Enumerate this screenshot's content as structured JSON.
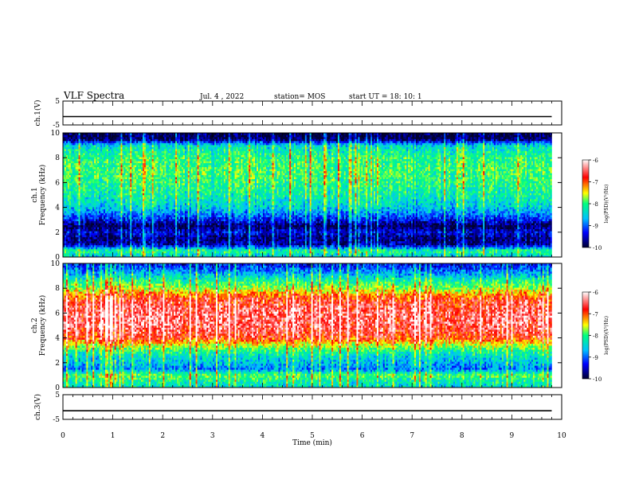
{
  "header": {
    "title": "VLF Spectra",
    "date": "Jul. 4 , 2022",
    "station": "station= MOS",
    "start": "start UT = 18: 10: 1"
  },
  "colors": {
    "spectrogram_scale": [
      "#000030",
      "#0000ff",
      "#00c0ff",
      "#00ff80",
      "#ffff00",
      "#ff0000",
      "#ffffff"
    ],
    "trace": "#000000"
  },
  "chart_data": [
    {
      "type": "line",
      "panel": "ch1-waveform",
      "ylabel": "ch.1(V)",
      "ylim": [
        -5,
        5
      ],
      "yticks": [
        "5",
        "-5"
      ],
      "xlim": [
        0,
        10
      ],
      "series": [
        {
          "x": [
            0,
            9.8
          ],
          "y": [
            -1.5,
            -1.5
          ]
        }
      ]
    },
    {
      "type": "heatmap",
      "panel": "ch1-spectrogram",
      "ylabel": "ch.1\nFrequency (kHz)",
      "ylim": [
        0,
        10
      ],
      "yticks": [
        "0",
        "2",
        "4",
        "6",
        "8",
        "10"
      ],
      "xlim": [
        0,
        10
      ],
      "data_extent_min": 9.8,
      "colorbar": {
        "label": "log(PSD)(V²/Hz)",
        "ticks": [
          "-6",
          "-7",
          "-8",
          "-9",
          "-10"
        ],
        "range": [
          -10,
          -6
        ]
      },
      "profile_khz": [
        0,
        0.5,
        1.0,
        1.5,
        2.0,
        2.5,
        3.0,
        3.5,
        4.0,
        5.0,
        6.0,
        7.0,
        8.0,
        9.0,
        9.5,
        10
      ],
      "profile_logpsd": [
        -8.6,
        -8.0,
        -9.6,
        -9.8,
        -9.4,
        -9.9,
        -9.3,
        -8.9,
        -8.5,
        -8.2,
        -8.0,
        -7.9,
        -8.0,
        -8.4,
        -9.9,
        -9.9
      ]
    },
    {
      "type": "heatmap",
      "panel": "ch2-spectrogram",
      "ylabel": "ch.2\nFrequency (kHz)",
      "ylim": [
        0,
        10
      ],
      "yticks": [
        "0",
        "2",
        "4",
        "6",
        "8",
        "10"
      ],
      "xlim": [
        0,
        10
      ],
      "data_extent_min": 9.8,
      "colorbar": {
        "label": "log(PSD)(V²/Hz)",
        "ticks": [
          "-6",
          "-7",
          "-8",
          "-9",
          "-10"
        ],
        "range": [
          -10,
          -6
        ]
      },
      "profile_khz": [
        0,
        0.5,
        1.0,
        1.5,
        2.0,
        2.5,
        3.0,
        3.5,
        4.0,
        5.0,
        6.0,
        7.0,
        7.5,
        8.0,
        8.5,
        9.0,
        9.5,
        10
      ],
      "profile_logpsd": [
        -8.4,
        -8.2,
        -7.8,
        -8.9,
        -8.6,
        -8.4,
        -8.0,
        -7.4,
        -6.7,
        -6.4,
        -6.4,
        -6.6,
        -7.0,
        -7.6,
        -8.0,
        -8.5,
        -9.0,
        -9.3
      ]
    },
    {
      "type": "line",
      "panel": "ch3-waveform",
      "ylabel": "ch.3(V)",
      "ylim": [
        -5,
        5
      ],
      "yticks": [
        "5",
        "-5"
      ],
      "xlim": [
        0,
        10
      ],
      "xticks": [
        "0",
        "1",
        "2",
        "3",
        "4",
        "5",
        "6",
        "7",
        "8",
        "9",
        "10"
      ],
      "xlabel": "Time (min)",
      "series": [
        {
          "x": [
            0,
            9.8
          ],
          "y": [
            -1.5,
            -1.5
          ]
        }
      ]
    }
  ]
}
